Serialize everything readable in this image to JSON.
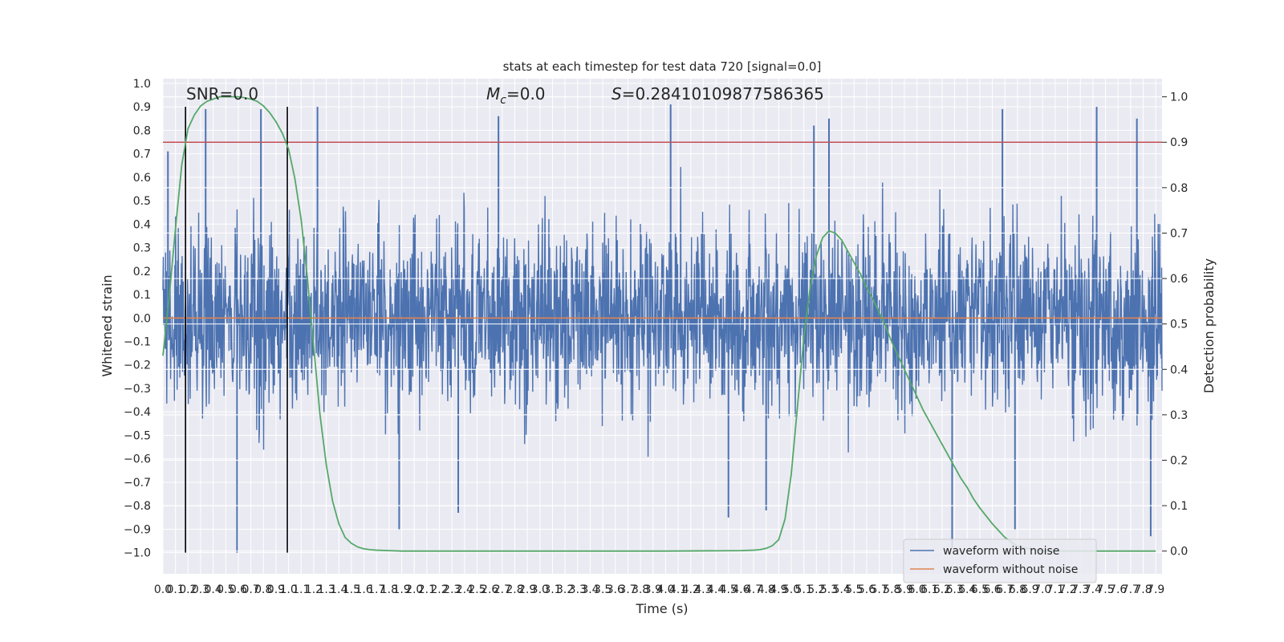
{
  "chart_data": {
    "type": "line",
    "title": "stats at each timestep for test data 720 [signal=0.0]",
    "xlabel": "Time (s)",
    "ylabel": "Whitened strain",
    "y2label": "Detection probability",
    "xlim": [
      0.0,
      7.95
    ],
    "ylim": [
      -1.09,
      1.02
    ],
    "y2lim": [
      -0.05,
      1.04
    ],
    "grid": true,
    "annotations": {
      "snr": "SNR=0.0",
      "mc_symbol": "M",
      "mc_sub": "c",
      "mc_value": "=0.0",
      "s_symbol": "S",
      "s_value": "=0.28410109877586365"
    },
    "x_ticks": [
      "0.0",
      "0.1",
      "0.2",
      "0.3",
      "0.4",
      "0.5",
      "0.6",
      "0.7",
      "0.8",
      "0.9",
      "1.0",
      "1.1",
      "1.2",
      "1.3",
      "1.4",
      "1.5",
      "1.6",
      "1.7",
      "1.8",
      "1.9",
      "2.0",
      "2.1",
      "2.2",
      "2.3",
      "2.4",
      "2.5",
      "2.6",
      "2.7",
      "2.8",
      "2.9",
      "3.0",
      "3.1",
      "3.2",
      "3.3",
      "3.4",
      "3.5",
      "3.6",
      "3.7",
      "3.8",
      "3.9",
      "4.0",
      "4.1",
      "4.2",
      "4.3",
      "4.4",
      "4.5",
      "4.6",
      "4.7",
      "4.8",
      "4.9",
      "5.0",
      "5.1",
      "5.2",
      "5.3",
      "5.4",
      "5.5",
      "5.6",
      "5.7",
      "5.8",
      "5.9",
      "6.0",
      "6.1",
      "6.2",
      "6.3",
      "6.4",
      "6.5",
      "6.6",
      "6.7",
      "6.8",
      "6.9",
      "7.0",
      "7.1",
      "7.2",
      "7.3",
      "7.4",
      "7.5",
      "7.6",
      "7.7",
      "7.8",
      "7.9"
    ],
    "y_ticks": [
      "1.0",
      "0.9",
      "0.8",
      "0.7",
      "0.6",
      "0.5",
      "0.4",
      "0.3",
      "0.2",
      "0.1",
      "0.0",
      "−0.1",
      "−0.2",
      "−0.3",
      "−0.4",
      "−0.5",
      "−0.6",
      "−0.7",
      "−0.8",
      "−0.9",
      "−1.0"
    ],
    "y2_ticks": [
      "1.0",
      "0.9",
      "0.8",
      "0.7",
      "0.6",
      "0.5",
      "0.4",
      "0.3",
      "0.2",
      "0.1",
      "0.0"
    ],
    "vertical_lines": [
      0.18,
      0.99
    ],
    "threshold": 0.9,
    "series": [
      {
        "name": "waveform with noise",
        "color": "#4c72b0",
        "axis": "left",
        "description_peaks": [
          [
            0.04,
            0.71
          ],
          [
            0.34,
            0.89
          ],
          [
            0.78,
            0.89
          ],
          [
            1.23,
            0.9
          ],
          [
            2.67,
            0.86
          ],
          [
            4.04,
            0.91
          ],
          [
            5.18,
            0.82
          ],
          [
            5.3,
            0.85
          ],
          [
            6.68,
            0.89
          ],
          [
            7.43,
            0.9
          ],
          [
            7.75,
            0.85
          ],
          [
            0.59,
            -1.0
          ],
          [
            1.88,
            -0.9
          ],
          [
            2.35,
            -0.83
          ],
          [
            4.5,
            -0.85
          ],
          [
            4.8,
            -0.82
          ],
          [
            6.28,
            -0.98
          ],
          [
            6.78,
            -0.9
          ],
          [
            7.86,
            -0.93
          ]
        ]
      },
      {
        "name": "waveform without noise",
        "color": "#dd8452",
        "axis": "left",
        "values": [
          [
            0.0,
            0.0
          ],
          [
            7.95,
            0.0
          ]
        ]
      },
      {
        "color": "#55a868",
        "axis": "right",
        "x": [
          0.0,
          0.05,
          0.1,
          0.15,
          0.2,
          0.25,
          0.3,
          0.35,
          0.4,
          0.45,
          0.5,
          0.55,
          0.6,
          0.65,
          0.7,
          0.75,
          0.8,
          0.85,
          0.9,
          0.95,
          1.0,
          1.05,
          1.1,
          1.15,
          1.2,
          1.25,
          1.3,
          1.35,
          1.4,
          1.45,
          1.5,
          1.55,
          1.6,
          1.65,
          1.7,
          1.8,
          1.9,
          2.0,
          3.0,
          4.0,
          4.6,
          4.7,
          4.75,
          4.8,
          4.85,
          4.9,
          4.95,
          5.0,
          5.05,
          5.1,
          5.15,
          5.2,
          5.25,
          5.3,
          5.35,
          5.4,
          5.45,
          5.5,
          5.55,
          5.6,
          5.65,
          5.7,
          5.75,
          5.8,
          5.85,
          5.9,
          5.95,
          6.0,
          6.05,
          6.1,
          6.15,
          6.2,
          6.25,
          6.3,
          6.35,
          6.4,
          6.45,
          6.5,
          6.6,
          6.7,
          6.8,
          7.0,
          7.5,
          7.9
        ],
        "values": [
          0.43,
          0.56,
          0.71,
          0.85,
          0.93,
          0.96,
          0.98,
          0.99,
          0.995,
          1.0,
          1.0,
          1.0,
          1.0,
          0.998,
          0.995,
          0.99,
          0.98,
          0.965,
          0.945,
          0.92,
          0.885,
          0.82,
          0.73,
          0.6,
          0.45,
          0.3,
          0.19,
          0.11,
          0.06,
          0.03,
          0.017,
          0.009,
          0.005,
          0.003,
          0.002,
          0.001,
          0.0,
          0.0,
          0.0,
          0.0,
          0.001,
          0.002,
          0.003,
          0.006,
          0.012,
          0.025,
          0.07,
          0.17,
          0.32,
          0.47,
          0.58,
          0.65,
          0.69,
          0.705,
          0.7,
          0.685,
          0.66,
          0.635,
          0.61,
          0.58,
          0.555,
          0.525,
          0.495,
          0.46,
          0.43,
          0.4,
          0.37,
          0.34,
          0.31,
          0.285,
          0.26,
          0.235,
          0.21,
          0.185,
          0.16,
          0.14,
          0.115,
          0.095,
          0.06,
          0.03,
          0.01,
          0.0,
          0.0,
          0.0
        ]
      }
    ],
    "legend": {
      "placement": "lower-right",
      "entries": [
        "waveform with noise",
        "waveform without noise"
      ]
    }
  },
  "colors": {
    "axes_bg": "#eaeaf2",
    "grid": "#ffffff",
    "noise": "#4c72b0",
    "clean": "#dd8452",
    "prob": "#55a868",
    "threshold": "#c44e52",
    "vline": "#000000"
  }
}
